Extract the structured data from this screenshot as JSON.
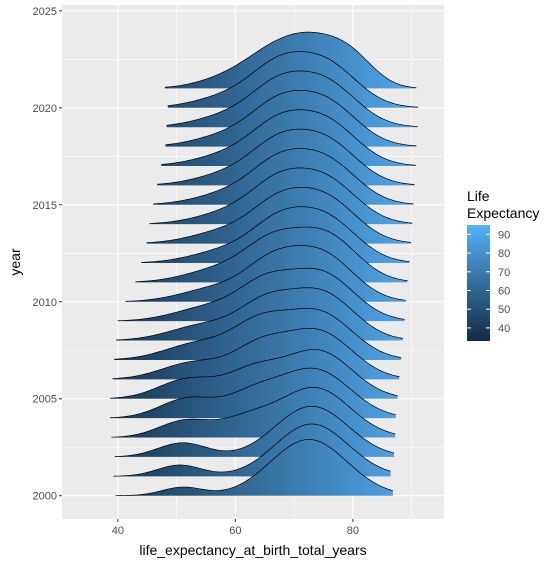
{
  "chart_data": {
    "type": "area",
    "subtype": "ridgeline",
    "xlabel": "life_expectancy_at_birth_total_years",
    "ylabel": "year",
    "xlim": [
      30.5,
      95.5
    ],
    "ylim": [
      1998.8,
      2025.3
    ],
    "x_ticks": [
      40,
      60,
      80
    ],
    "y_ticks": [
      2000,
      2005,
      2010,
      2015,
      2020,
      2025
    ],
    "grid": true,
    "legend": {
      "title_lines": [
        "Life",
        "Expectancy"
      ],
      "position": "right",
      "values": [
        90,
        80,
        70,
        60,
        50,
        40
      ],
      "range": [
        33,
        95
      ],
      "color_low": "#132B43",
      "color_high": "#56B1F7"
    },
    "ridge_height_years": 2.9,
    "series": [
      {
        "year": 2000,
        "x_min": 39.6,
        "x_max": 86.8,
        "peaks": [
          [
            51,
            0.15,
            3.5
          ],
          [
            72.5,
            1.0,
            6.5
          ]
        ]
      },
      {
        "year": 2001,
        "x_min": 39.2,
        "x_max": 86.4,
        "peaks": [
          [
            50.5,
            0.2,
            3.8
          ],
          [
            73,
            0.93,
            6.2
          ]
        ]
      },
      {
        "year": 2002,
        "x_min": 39.5,
        "x_max": 87.0,
        "peaks": [
          [
            51,
            0.25,
            4.2
          ],
          [
            73,
            0.9,
            6.2
          ]
        ]
      },
      {
        "year": 2003,
        "x_min": 38.9,
        "x_max": 87.2,
        "peaks": [
          [
            51.5,
            0.3,
            4.5
          ],
          [
            62,
            0.3,
            4.5
          ],
          [
            73.5,
            0.88,
            6.0
          ]
        ]
      },
      {
        "year": 2004,
        "x_min": 38.7,
        "x_max": 87.3,
        "peaks": [
          [
            52,
            0.35,
            4.8
          ],
          [
            63,
            0.38,
            4.5
          ],
          [
            73.5,
            0.86,
            6.0
          ]
        ]
      },
      {
        "year": 2005,
        "x_min": 38.7,
        "x_max": 87.6,
        "peaks": [
          [
            52,
            0.35,
            5.0
          ],
          [
            63,
            0.45,
            4.5
          ],
          [
            74,
            0.85,
            5.8
          ]
        ]
      },
      {
        "year": 2006,
        "x_min": 39.1,
        "x_max": 87.9,
        "peaks": [
          [
            53,
            0.3,
            5.5
          ],
          [
            64,
            0.5,
            4.5
          ],
          [
            74,
            0.85,
            5.8
          ]
        ]
      },
      {
        "year": 2007,
        "x_min": 39.4,
        "x_max": 88.2,
        "peaks": [
          [
            54,
            0.3,
            5.8
          ],
          [
            64,
            0.55,
            4.5
          ],
          [
            74,
            0.85,
            5.8
          ]
        ]
      },
      {
        "year": 2008,
        "x_min": 39.7,
        "x_max": 88.5,
        "peaks": [
          [
            55,
            0.28,
            6.0
          ],
          [
            65,
            0.55,
            4.5
          ],
          [
            74.5,
            0.85,
            5.6
          ]
        ]
      },
      {
        "year": 2009,
        "x_min": 40.0,
        "x_max": 88.8,
        "peaks": [
          [
            56,
            0.26,
            6.0
          ],
          [
            65,
            0.55,
            4.5
          ],
          [
            74.5,
            0.85,
            5.6
          ]
        ]
      },
      {
        "year": 2010,
        "x_min": 41.3,
        "x_max": 89.0,
        "peaks": [
          [
            57,
            0.25,
            6.0
          ],
          [
            66,
            0.55,
            4.5
          ],
          [
            74.5,
            0.86,
            5.5
          ]
        ]
      },
      {
        "year": 2011,
        "x_min": 43.0,
        "x_max": 89.3,
        "peaks": [
          [
            58,
            0.25,
            6.0
          ],
          [
            66,
            0.55,
            4.5
          ],
          [
            75,
            0.86,
            5.5
          ]
        ]
      },
      {
        "year": 2012,
        "x_min": 44.0,
        "x_max": 89.6,
        "peaks": [
          [
            59,
            0.25,
            6.0
          ],
          [
            67,
            0.55,
            4.5
          ],
          [
            75,
            0.86,
            5.5
          ]
        ]
      },
      {
        "year": 2013,
        "x_min": 44.9,
        "x_max": 89.9,
        "peaks": [
          [
            59,
            0.25,
            6.0
          ],
          [
            67,
            0.55,
            4.5
          ],
          [
            75,
            0.86,
            5.5
          ]
        ]
      },
      {
        "year": 2014,
        "x_min": 45.4,
        "x_max": 90.1,
        "peaks": [
          [
            60,
            0.25,
            6.0
          ],
          [
            67,
            0.55,
            4.5
          ],
          [
            75,
            0.86,
            5.5
          ]
        ]
      },
      {
        "year": 2015,
        "x_min": 46.0,
        "x_max": 90.3,
        "peaks": [
          [
            60,
            0.25,
            6.0
          ],
          [
            67,
            0.55,
            4.5
          ],
          [
            75,
            0.86,
            5.5
          ]
        ]
      },
      {
        "year": 2016,
        "x_min": 46.7,
        "x_max": 90.5,
        "peaks": [
          [
            60,
            0.25,
            6.0
          ],
          [
            67,
            0.55,
            4.5
          ],
          [
            75,
            0.86,
            5.5
          ]
        ]
      },
      {
        "year": 2017,
        "x_min": 47.4,
        "x_max": 90.7,
        "peaks": [
          [
            60,
            0.25,
            6.0
          ],
          [
            67,
            0.55,
            4.5
          ],
          [
            75,
            0.86,
            5.5
          ]
        ]
      },
      {
        "year": 2018,
        "x_min": 48.1,
        "x_max": 90.8,
        "peaks": [
          [
            60,
            0.25,
            6.0
          ],
          [
            67,
            0.55,
            4.5
          ],
          [
            75,
            0.86,
            5.5
          ]
        ]
      },
      {
        "year": 2019,
        "x_min": 48.3,
        "x_max": 91.0,
        "peaks": [
          [
            60,
            0.25,
            6.0
          ],
          [
            67,
            0.55,
            4.5
          ],
          [
            75,
            0.86,
            5.5
          ]
        ]
      },
      {
        "year": 2020,
        "x_min": 48.5,
        "x_max": 91.1,
        "peaks": [
          [
            60,
            0.25,
            6.0
          ],
          [
            67,
            0.55,
            4.5
          ],
          [
            75,
            0.86,
            5.5
          ]
        ]
      },
      {
        "year": 2021,
        "x_min": 48.0,
        "x_max": 90.8,
        "peaks": [
          [
            60,
            0.28,
            5.5
          ],
          [
            66,
            0.5,
            4.5
          ],
          [
            73,
            1.0,
            5.0
          ],
          [
            80,
            0.55,
            4.0
          ]
        ]
      }
    ]
  }
}
